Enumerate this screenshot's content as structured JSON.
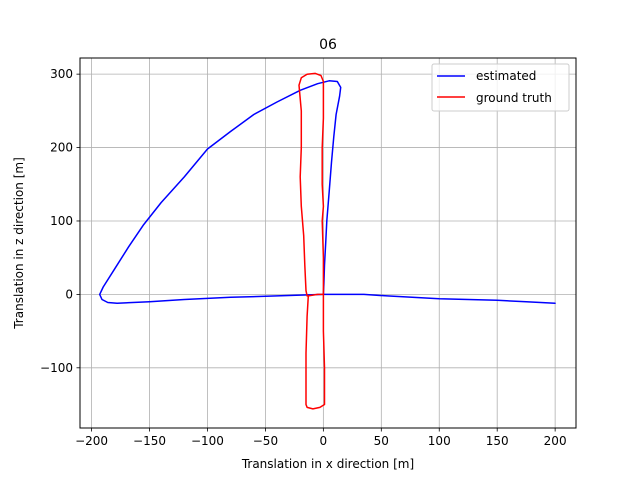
{
  "chart_data": {
    "type": "line",
    "title": "06",
    "xlabel": "Translation in x direction [m]",
    "ylabel": "Translation in z direction [m]",
    "xlim": [
      -210,
      218
    ],
    "ylim": [
      -182,
      322
    ],
    "xticks": [
      -200,
      -150,
      -100,
      -50,
      0,
      50,
      100,
      150,
      200
    ],
    "yticks": [
      -100,
      0,
      100,
      200,
      300
    ],
    "grid": true,
    "legend_position": "top-right",
    "series": [
      {
        "name": "estimated",
        "color": "#0000ff",
        "points": [
          [
            0,
            0
          ],
          [
            35,
            0
          ],
          [
            55,
            -2
          ],
          [
            100,
            -6
          ],
          [
            150,
            -8
          ],
          [
            175,
            -10
          ],
          [
            200,
            -12
          ],
          [
            200,
            -12
          ],
          [
            175,
            -10
          ],
          [
            150,
            -8
          ],
          [
            100,
            -6
          ],
          [
            55,
            -2
          ],
          [
            35,
            0
          ],
          [
            0,
            0
          ],
          [
            -40,
            -2
          ],
          [
            -80,
            -4
          ],
          [
            -120,
            -7
          ],
          [
            -150,
            -10
          ],
          [
            -178,
            -12
          ],
          [
            -186,
            -11
          ],
          [
            -191,
            -7
          ],
          [
            -193,
            0
          ],
          [
            -190,
            10
          ],
          [
            -180,
            35
          ],
          [
            -168,
            65
          ],
          [
            -155,
            95
          ],
          [
            -140,
            125
          ],
          [
            -120,
            160
          ],
          [
            -100,
            198
          ],
          [
            -80,
            222
          ],
          [
            -60,
            245
          ],
          [
            -40,
            262
          ],
          [
            -20,
            278
          ],
          [
            -5,
            287
          ],
          [
            5,
            291
          ],
          [
            12,
            290
          ],
          [
            15,
            282
          ],
          [
            14,
            270
          ],
          [
            11,
            245
          ],
          [
            9,
            215
          ],
          [
            7,
            180
          ],
          [
            5,
            140
          ],
          [
            3,
            100
          ],
          [
            2,
            70
          ],
          [
            1,
            40
          ],
          [
            0.5,
            15
          ],
          [
            0,
            0
          ]
        ]
      },
      {
        "name": "ground truth",
        "color": "#ff0000",
        "points": [
          [
            0,
            0
          ],
          [
            -5,
            0
          ],
          [
            -9,
            -1
          ],
          [
            -13,
            -2
          ],
          [
            -14,
            -30
          ],
          [
            -15,
            -80
          ],
          [
            -15,
            -130
          ],
          [
            -15,
            -150
          ],
          [
            -14,
            -154
          ],
          [
            -9,
            -156
          ],
          [
            -3,
            -154
          ],
          [
            1,
            -150
          ],
          [
            1,
            -100
          ],
          [
            0,
            -50
          ],
          [
            0,
            0
          ],
          [
            0,
            50
          ],
          [
            -1,
            100
          ],
          [
            0,
            120
          ],
          [
            -1,
            150
          ],
          [
            -1,
            200
          ],
          [
            0,
            240
          ],
          [
            0,
            270
          ],
          [
            0,
            290
          ],
          [
            -2,
            298
          ],
          [
            -7,
            301
          ],
          [
            -14,
            300
          ],
          [
            -19,
            295
          ],
          [
            -21,
            285
          ],
          [
            -19,
            250
          ],
          [
            -19,
            200
          ],
          [
            -20,
            160
          ],
          [
            -19,
            120
          ],
          [
            -17,
            80
          ],
          [
            -16,
            40
          ],
          [
            -15,
            5
          ],
          [
            -14,
            -2
          ],
          [
            -13,
            -2
          ]
        ]
      }
    ]
  }
}
